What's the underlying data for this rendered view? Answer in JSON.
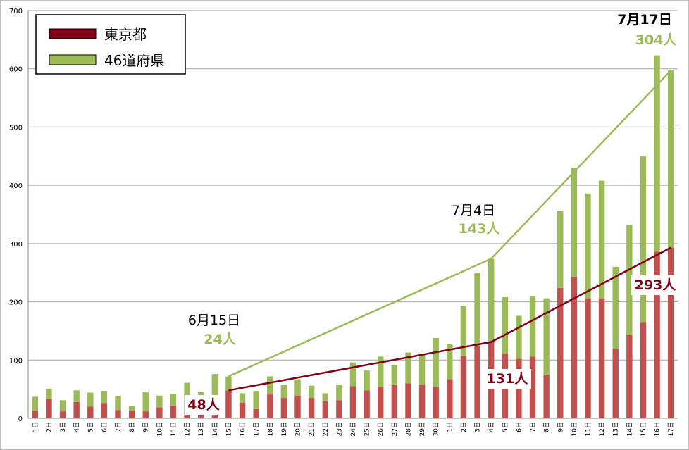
{
  "chart_data": {
    "type": "bar",
    "stacked": true,
    "ylim": [
      0,
      700
    ],
    "yticks": [
      "0",
      "100",
      "200",
      "300",
      "400",
      "500",
      "600",
      "700"
    ],
    "grid": true,
    "legend_placement": "top-left",
    "categories": [
      "1日",
      "2日",
      "3日",
      "4日",
      "5日",
      "6日",
      "7日",
      "8日",
      "9日",
      "10日",
      "11日",
      "12日",
      "13日",
      "14日",
      "15日",
      "16日",
      "17日",
      "18日",
      "19日",
      "20日",
      "21日",
      "22日",
      "23日",
      "24日",
      "25日",
      "26日",
      "27日",
      "28日",
      "29日",
      "30日",
      "1日",
      "2日",
      "3日",
      "4日",
      "5日",
      "6日",
      "7日",
      "8日",
      "9日",
      "10日",
      "11日",
      "12日",
      "13日",
      "14日",
      "15日",
      "16日",
      "17日"
    ],
    "series": [
      {
        "name": "東京都",
        "color": "#c0504d",
        "values": [
          13,
          34,
          12,
          28,
          20,
          26,
          14,
          13,
          12,
          19,
          22,
          8,
          8,
          8,
          48,
          27,
          16,
          41,
          35,
          39,
          35,
          29,
          31,
          55,
          48,
          54,
          57,
          60,
          58,
          54,
          67,
          107,
          124,
          131,
          111,
          102,
          106,
          75,
          224,
          243,
          206,
          206,
          119,
          143,
          165,
          286,
          293
        ]
      },
      {
        "name": "46道府県",
        "color": "#9bbb59",
        "values": [
          24,
          17,
          19,
          20,
          24,
          21,
          24,
          8,
          33,
          20,
          20,
          53,
          37,
          68,
          24,
          16,
          31,
          31,
          22,
          28,
          21,
          14,
          27,
          41,
          34,
          52,
          35,
          53,
          52,
          84,
          60,
          86,
          126,
          143,
          97,
          74,
          103,
          131,
          132,
          187,
          180,
          202,
          141,
          189,
          285,
          337,
          304
        ]
      }
    ],
    "lines": [
      {
        "series": "東京都",
        "color": "#7f0016",
        "points": [
          {
            "category_index": 14,
            "value": 48
          },
          {
            "category_index": 33,
            "value": 131
          },
          {
            "category_index": 46,
            "value": 293
          }
        ]
      },
      {
        "series": "46道府県",
        "color": "#9bbb59",
        "points": [
          {
            "category_index": 14,
            "value": 72
          },
          {
            "category_index": 33,
            "value": 274
          },
          {
            "category_index": 46,
            "value": 597
          }
        ]
      }
    ],
    "annotations": [
      {
        "id": "jun15",
        "date": "6月15日",
        "green": "24人",
        "red": "48人",
        "category_index": 14
      },
      {
        "id": "jul4",
        "date": "7月4日",
        "green": "143人",
        "red": "131人",
        "category_index": 33
      },
      {
        "id": "jul17",
        "date": "7月17日",
        "green": "304人",
        "red": "293人",
        "category_index": 46
      }
    ]
  }
}
